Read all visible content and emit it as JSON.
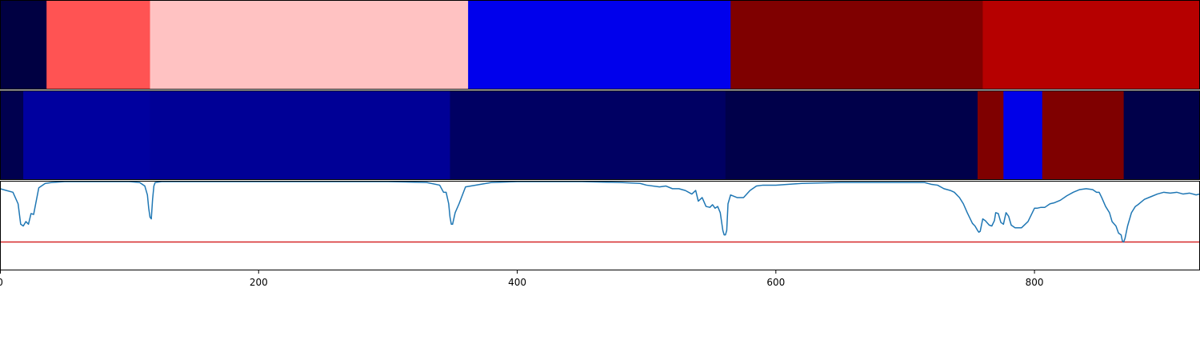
{
  "chart_data": [
    {
      "type": "heatmap",
      "name": "segmentation-top",
      "segments": [
        {
          "x0": 0,
          "x1": 36,
          "color": "#000042"
        },
        {
          "x0": 36,
          "x1": 116,
          "color": "#ff5353"
        },
        {
          "x0": 116,
          "x1": 362,
          "color": "#ffc2c2"
        },
        {
          "x0": 362,
          "x1": 565,
          "color": "#0000ec"
        },
        {
          "x0": 565,
          "x1": 760,
          "color": "#7f0000"
        },
        {
          "x0": 760,
          "x1": 928,
          "color": "#b60000"
        }
      ]
    },
    {
      "type": "heatmap",
      "name": "segmentation-bottom",
      "segments": [
        {
          "x0": 0,
          "x1": 18,
          "color": "#00004f"
        },
        {
          "x0": 18,
          "x1": 116,
          "color": "#00009f"
        },
        {
          "x0": 116,
          "x1": 348,
          "color": "#000096"
        },
        {
          "x0": 348,
          "x1": 561,
          "color": "#000063"
        },
        {
          "x0": 561,
          "x1": 756,
          "color": "#00004a"
        },
        {
          "x0": 756,
          "x1": 776,
          "color": "#7f0000"
        },
        {
          "x0": 776,
          "x1": 806,
          "color": "#0000e8"
        },
        {
          "x0": 806,
          "x1": 869,
          "color": "#7f0000"
        },
        {
          "x0": 869,
          "x1": 928,
          "color": "#00004a"
        }
      ]
    },
    {
      "type": "line",
      "name": "score-line",
      "xlim": [
        0,
        928
      ],
      "ylim": [
        0,
        1
      ],
      "xticks": [
        0,
        200,
        400,
        600,
        800
      ],
      "threshold": 0.32,
      "series": [
        {
          "color": "#1f77b4",
          "x": [
            0,
            5,
            10,
            14,
            16,
            18,
            20,
            22,
            24,
            26,
            30,
            35,
            40,
            50,
            70,
            100,
            108,
            112,
            114,
            115,
            116,
            117,
            118,
            119,
            120,
            125,
            130,
            150,
            200,
            300,
            330,
            340,
            343,
            345,
            347,
            348,
            349,
            350,
            352,
            355,
            360,
            380,
            400,
            450,
            480,
            495,
            500,
            510,
            515,
            520,
            525,
            530,
            535,
            538,
            540,
            543,
            546,
            549,
            551,
            553,
            555,
            557,
            559,
            560,
            561,
            562,
            563,
            565,
            570,
            575,
            580,
            585,
            590,
            600,
            620,
            650,
            700,
            710,
            715,
            720,
            725,
            730,
            735,
            738,
            742,
            745,
            748,
            752,
            754,
            756,
            757,
            758,
            760,
            762,
            765,
            767,
            769,
            770,
            772,
            774,
            776,
            778,
            780,
            782,
            785,
            790,
            795,
            800,
            802,
            805,
            808,
            812,
            815,
            820,
            825,
            830,
            835,
            840,
            845,
            848,
            850,
            852,
            855,
            858,
            860,
            863,
            865,
            867,
            868,
            869,
            870,
            872,
            875,
            878,
            880,
            885,
            890,
            895,
            900,
            905,
            910,
            915,
            920,
            925,
            928
          ],
          "y": [
            0.92,
            0.9,
            0.88,
            0.75,
            0.52,
            0.5,
            0.55,
            0.52,
            0.64,
            0.63,
            0.93,
            0.98,
            0.99,
            1.0,
            1.0,
            1.0,
            0.99,
            0.95,
            0.85,
            0.7,
            0.6,
            0.58,
            0.8,
            0.95,
            0.99,
            1.0,
            1.0,
            1.0,
            1.0,
            1.0,
            0.99,
            0.96,
            0.88,
            0.88,
            0.75,
            0.6,
            0.52,
            0.52,
            0.65,
            0.75,
            0.94,
            0.99,
            1.0,
            1.0,
            0.99,
            0.98,
            0.96,
            0.94,
            0.95,
            0.92,
            0.92,
            0.9,
            0.86,
            0.9,
            0.78,
            0.82,
            0.72,
            0.71,
            0.74,
            0.7,
            0.72,
            0.65,
            0.45,
            0.4,
            0.4,
            0.45,
            0.75,
            0.85,
            0.82,
            0.82,
            0.9,
            0.95,
            0.96,
            0.96,
            0.98,
            0.99,
            0.99,
            0.99,
            0.99,
            0.97,
            0.96,
            0.92,
            0.9,
            0.88,
            0.82,
            0.75,
            0.65,
            0.53,
            0.5,
            0.45,
            0.43,
            0.44,
            0.58,
            0.56,
            0.51,
            0.5,
            0.56,
            0.65,
            0.64,
            0.54,
            0.52,
            0.65,
            0.61,
            0.51,
            0.48,
            0.48,
            0.55,
            0.7,
            0.7,
            0.71,
            0.71,
            0.75,
            0.76,
            0.79,
            0.84,
            0.88,
            0.91,
            0.92,
            0.91,
            0.88,
            0.88,
            0.82,
            0.72,
            0.65,
            0.55,
            0.5,
            0.42,
            0.4,
            0.33,
            0.32,
            0.36,
            0.5,
            0.65,
            0.72,
            0.74,
            0.8,
            0.83,
            0.86,
            0.88,
            0.87,
            0.88,
            0.86,
            0.87,
            0.85,
            0.86
          ]
        }
      ],
      "threshold_color": "#d62728"
    }
  ]
}
